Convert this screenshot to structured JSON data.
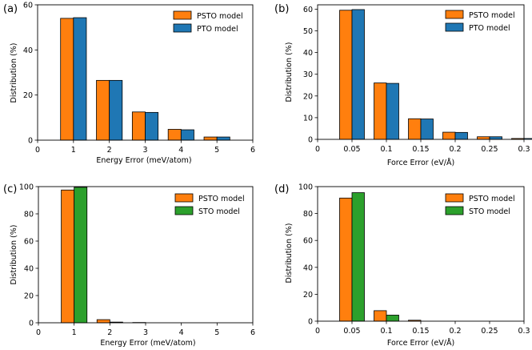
{
  "figure": {
    "colors": {
      "pst": "#ff7f0e",
      "pto": "#1f77b4",
      "sto": "#2ca02c"
    }
  },
  "chart_data": [
    {
      "panel": "(a)",
      "type": "bar",
      "xlabel": "Energy Error (meV/atom)",
      "ylabel": "Distribution (%)",
      "xlim": [
        0,
        6
      ],
      "ylim": [
        0,
        60
      ],
      "xticks": [
        0,
        1,
        2,
        3,
        4,
        5,
        6
      ],
      "xtick_labels": [
        "0",
        "1",
        "2",
        "3",
        "4",
        "5",
        "6"
      ],
      "yticks": [
        0,
        20,
        40,
        60
      ],
      "ytick_labels": [
        "0",
        "20",
        "40",
        "60"
      ],
      "categories": [
        1,
        2,
        3,
        4,
        5
      ],
      "bar_width": 0.36,
      "legend_position": "top-right",
      "series": [
        {
          "name": "PSTO model",
          "color": "#ff7f0e",
          "values": [
            54.0,
            26.5,
            12.5,
            4.8,
            1.4
          ]
        },
        {
          "name": "PTO model",
          "color": "#1f77b4",
          "values": [
            54.3,
            26.5,
            12.3,
            4.6,
            1.4
          ]
        }
      ]
    },
    {
      "panel": "(b)",
      "type": "bar",
      "xlabel": "Force Error (eV/Å)",
      "ylabel": "Distribution (%)",
      "xlim": [
        0,
        0.3
      ],
      "ylim": [
        0,
        62
      ],
      "xticks": [
        0,
        0.05,
        0.1,
        0.15,
        0.2,
        0.25,
        0.3
      ],
      "xtick_labels": [
        "0",
        "0.05",
        "0.1",
        "0.15",
        "0.2",
        "0.25",
        "0.3"
      ],
      "yticks": [
        0,
        10,
        20,
        30,
        40,
        50,
        60
      ],
      "ytick_labels": [
        "0",
        "10",
        "20",
        "30",
        "40",
        "50",
        "60"
      ],
      "categories": [
        0.05,
        0.1,
        0.15,
        0.2,
        0.25,
        0.3
      ],
      "bar_width": 0.018,
      "legend_position": "top-right",
      "series": [
        {
          "name": "PSTO model",
          "color": "#ff7f0e",
          "values": [
            59.5,
            26.0,
            9.5,
            3.3,
            1.2,
            0.4
          ]
        },
        {
          "name": "PTO model",
          "color": "#1f77b4",
          "values": [
            59.8,
            25.8,
            9.4,
            3.2,
            1.2,
            0.4
          ]
        }
      ]
    },
    {
      "panel": "(c)",
      "type": "bar",
      "xlabel": "Energy Error (meV/atom)",
      "ylabel": "Distribution (%)",
      "xlim": [
        0,
        6
      ],
      "ylim": [
        0,
        100
      ],
      "xticks": [
        0,
        1,
        2,
        3,
        4,
        5,
        6
      ],
      "xtick_labels": [
        "0",
        "1",
        "2",
        "3",
        "4",
        "5",
        "6"
      ],
      "yticks": [
        0,
        20,
        40,
        60,
        80,
        100
      ],
      "ytick_labels": [
        "0",
        "20",
        "40",
        "60",
        "80",
        "100"
      ],
      "categories": [
        1,
        2,
        3,
        4,
        5
      ],
      "bar_width": 0.36,
      "legend_position": "top-right",
      "series": [
        {
          "name": "PSTO model",
          "color": "#ff7f0e",
          "values": [
            97.5,
            2.3,
            0.2,
            0,
            0
          ]
        },
        {
          "name": "STO model",
          "color": "#2ca02c",
          "values": [
            99.5,
            0.5,
            0,
            0,
            0
          ]
        }
      ]
    },
    {
      "panel": "(d)",
      "type": "bar",
      "xlabel": "Force Error (eV/Å)",
      "ylabel": "Distribution (%)",
      "xlim": [
        0,
        0.3
      ],
      "ylim": [
        0,
        100
      ],
      "xticks": [
        0,
        0.05,
        0.1,
        0.15,
        0.2,
        0.25,
        0.3
      ],
      "xtick_labels": [
        "0",
        "0.05",
        "0.1",
        "0.15",
        "0.2",
        "0.25",
        "0.3"
      ],
      "yticks": [
        0,
        20,
        40,
        60,
        80,
        100
      ],
      "ytick_labels": [
        "0",
        "20",
        "40",
        "60",
        "80",
        "100"
      ],
      "categories": [
        0.05,
        0.1,
        0.15
      ],
      "bar_width": 0.018,
      "legend_position": "top-right",
      "series": [
        {
          "name": "PSTO model",
          "color": "#ff7f0e",
          "values": [
            91.5,
            7.8,
            0.7
          ]
        },
        {
          "name": "STO model",
          "color": "#2ca02c",
          "values": [
            95.5,
            4.5,
            0
          ]
        }
      ]
    }
  ]
}
